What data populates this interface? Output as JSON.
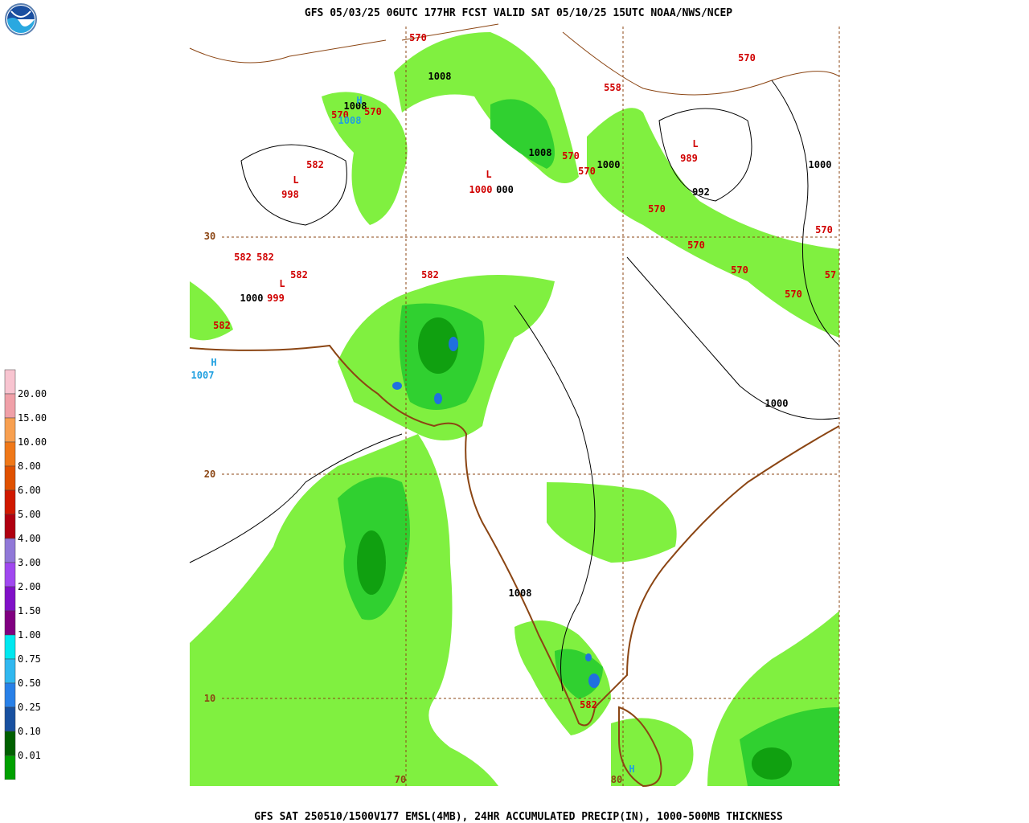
{
  "header": {
    "title": "GFS 05/03/25 06UTC 177HR FCST VALID SAT 05/10/25 15UTC NOAA/NWS/NCEP"
  },
  "footer": {
    "caption": "GFS SAT 250510/1500V177 EMSL(4MB), 24HR ACCUMULATED PRECIP(IN), 1000-500MB THICKNESS"
  },
  "legend": {
    "labels": [
      "20.00",
      "15.00",
      "10.00",
      "8.00",
      "6.00",
      "5.00",
      "4.00",
      "3.00",
      "2.00",
      "1.50",
      "1.00",
      "0.75",
      "0.50",
      "0.25",
      "0.10",
      "0.01"
    ],
    "colors": [
      "#f8c4d0",
      "#f0a0a8",
      "#f8a050",
      "#f07818",
      "#e05000",
      "#d01800",
      "#b00010",
      "#9078d8",
      "#a048f0",
      "#8010c8",
      "#800080",
      "#00e8f0",
      "#30b8f0",
      "#2880e8",
      "#1850a0",
      "#006000",
      "#00a000"
    ]
  },
  "map": {
    "labels": [
      {
        "text": "570",
        "color": "#d00000"
      },
      {
        "text": "1008",
        "color": "#000000"
      },
      {
        "text": "1008",
        "color": "#000000"
      },
      {
        "text": "H",
        "color": "#20a0e0"
      },
      {
        "text": "570",
        "color": "#d00000"
      },
      {
        "text": "570",
        "color": "#d00000"
      },
      {
        "text": "1008",
        "color": "#20a0e0"
      },
      {
        "text": "558",
        "color": "#d00000"
      },
      {
        "text": "570",
        "color": "#d00000"
      },
      {
        "text": "L",
        "color": "#d00000"
      },
      {
        "text": "989",
        "color": "#d00000"
      },
      {
        "text": "1008",
        "color": "#000000"
      },
      {
        "text": "570",
        "color": "#d00000"
      },
      {
        "text": "570",
        "color": "#d00000"
      },
      {
        "text": "1000",
        "color": "#000000"
      },
      {
        "text": "L",
        "color": "#d00000"
      },
      {
        "text": "1000",
        "color": "#d00000"
      },
      {
        "text": "000",
        "color": "#000000"
      },
      {
        "text": "992",
        "color": "#000000"
      },
      {
        "text": "1000",
        "color": "#000000"
      },
      {
        "text": "L",
        "color": "#d00000"
      },
      {
        "text": "582",
        "color": "#d00000"
      },
      {
        "text": "998",
        "color": "#d00000"
      },
      {
        "text": "570",
        "color": "#d00000"
      },
      {
        "text": "570",
        "color": "#d00000"
      },
      {
        "text": "570",
        "color": "#d00000"
      },
      {
        "text": "570",
        "color": "#d00000"
      },
      {
        "text": "570",
        "color": "#d00000"
      },
      {
        "text": "57",
        "color": "#d00000"
      },
      {
        "text": "30",
        "color": "#8b4513"
      },
      {
        "text": "582",
        "color": "#d00000"
      },
      {
        "text": "582",
        "color": "#d00000"
      },
      {
        "text": "582",
        "color": "#d00000"
      },
      {
        "text": "582",
        "color": "#d00000"
      },
      {
        "text": "L",
        "color": "#d00000"
      },
      {
        "text": "1000",
        "color": "#000000"
      },
      {
        "text": "999",
        "color": "#d00000"
      },
      {
        "text": "582",
        "color": "#d00000"
      },
      {
        "text": "H",
        "color": "#20a0e0"
      },
      {
        "text": "1007",
        "color": "#20a0e0"
      },
      {
        "text": "1000",
        "color": "#000000"
      },
      {
        "text": "20",
        "color": "#8b4513"
      },
      {
        "text": "1008",
        "color": "#000000"
      },
      {
        "text": "10",
        "color": "#8b4513"
      },
      {
        "text": "582",
        "color": "#d00000"
      },
      {
        "text": "70",
        "color": "#8b4513"
      },
      {
        "text": "80",
        "color": "#8b4513"
      },
      {
        "text": "H",
        "color": "#20a0e0"
      }
    ]
  }
}
